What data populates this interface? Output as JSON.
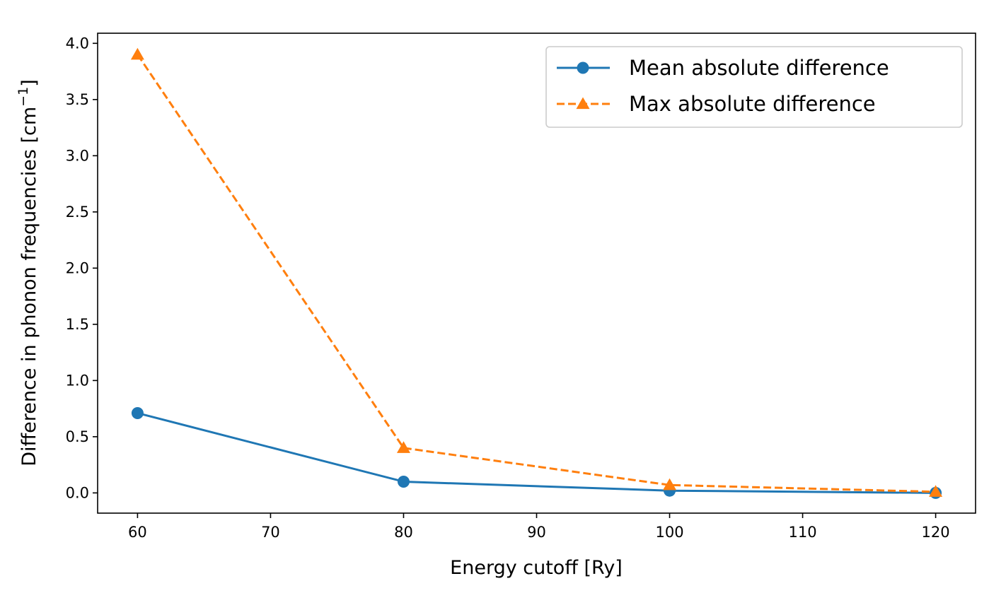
{
  "chart_data": {
    "type": "line",
    "xlabel": "Energy cutoff [Ry]",
    "ylabel_main": "Difference in phonon frequencies [cm",
    "ylabel_sup": "−1",
    "ylabel_close": "]",
    "xlim": [
      57,
      123
    ],
    "ylim": [
      -0.18,
      4.09
    ],
    "xticks": [
      60,
      70,
      80,
      90,
      100,
      110,
      120
    ],
    "yticks": [
      0.0,
      0.5,
      1.0,
      1.5,
      2.0,
      2.5,
      3.0,
      3.5,
      4.0
    ],
    "x": [
      60,
      80,
      100,
      120
    ],
    "series": [
      {
        "name": "Mean absolute difference",
        "values": [
          0.71,
          0.1,
          0.02,
          0.0
        ],
        "color": "#1f77b4",
        "marker": "circle",
        "linestyle": "solid"
      },
      {
        "name": "Max absolute difference",
        "values": [
          3.9,
          0.4,
          0.07,
          0.01
        ],
        "color": "#ff7f0e",
        "marker": "triangle",
        "linestyle": "dashed"
      }
    ],
    "legend_position": "top-right",
    "grid": false
  }
}
